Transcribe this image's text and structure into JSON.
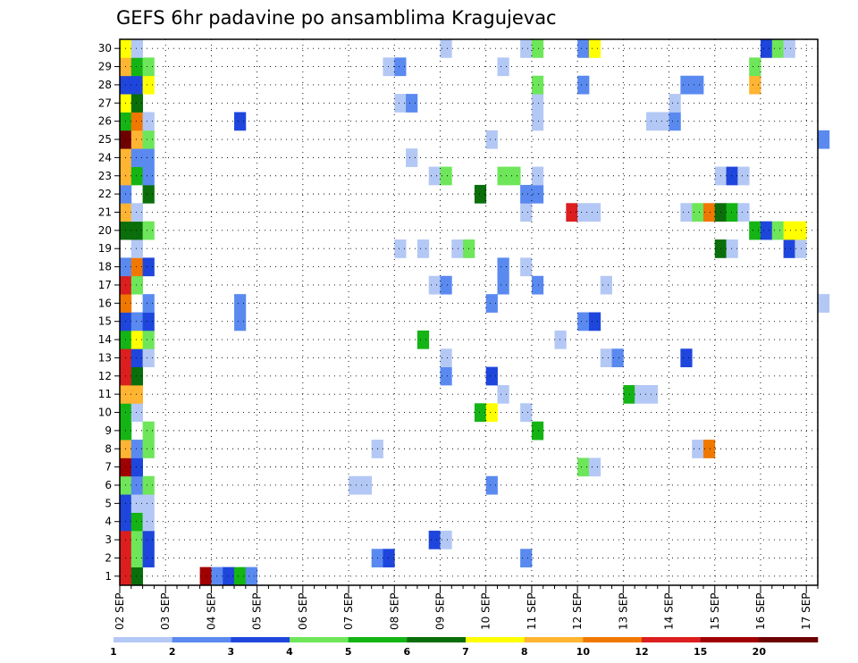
{
  "chart_data": {
    "type": "heatmap",
    "title": "GEFS 6hr padavine po ansamblima Kragujevac",
    "x_tick_labels": [
      "02 SEP",
      "03 SEP",
      "04 SEP",
      "05 SEP",
      "06 SEP",
      "07 SEP",
      "08 SEP",
      "09 SEP",
      "10 SEP",
      "11 SEP",
      "12 SEP",
      "13 SEP",
      "14 SEP",
      "15 SEP",
      "16 SEP",
      "17 SEP"
    ],
    "y_tick_labels": [
      "1",
      "2",
      "3",
      "4",
      "5",
      "6",
      "7",
      "8",
      "9",
      "10",
      "11",
      "12",
      "13",
      "14",
      "15",
      "16",
      "17",
      "18",
      "19",
      "20",
      "21",
      "22",
      "23",
      "24",
      "25",
      "26",
      "27",
      "28",
      "29",
      "30"
    ],
    "xlim": [
      0,
      61
    ],
    "ylim": [
      0,
      30
    ],
    "colorbar": {
      "labels": [
        "1",
        "2",
        "3",
        "4",
        "5",
        "6",
        "7",
        "8",
        "10",
        "12",
        "15",
        "20"
      ],
      "colors": [
        "#b4c8f5",
        "#5a8af0",
        "#1e46dc",
        "#6ee65a",
        "#14b414",
        "#0a6e0a",
        "#ffff00",
        "#ffb432",
        "#f07800",
        "#dc1e1e",
        "#a00000",
        "#6e0000"
      ]
    },
    "grid": true,
    "cells": [
      [
        0,
        0,
        10
      ],
      [
        1,
        0,
        6
      ],
      [
        7,
        0,
        11
      ],
      [
        8,
        0,
        2
      ],
      [
        9,
        0,
        3
      ],
      [
        10,
        0,
        5
      ],
      [
        11,
        0,
        2
      ],
      [
        0,
        1,
        10
      ],
      [
        1,
        1,
        4
      ],
      [
        2,
        1,
        3
      ],
      [
        22,
        1,
        2
      ],
      [
        23,
        1,
        3
      ],
      [
        35,
        1,
        2
      ],
      [
        0,
        2,
        10
      ],
      [
        1,
        2,
        4
      ],
      [
        2,
        2,
        3
      ],
      [
        27,
        2,
        3
      ],
      [
        28,
        2,
        1
      ],
      [
        0,
        3,
        3
      ],
      [
        1,
        3,
        5
      ],
      [
        2,
        3,
        1
      ],
      [
        0,
        4,
        3
      ],
      [
        1,
        4,
        1
      ],
      [
        2,
        4,
        1
      ],
      [
        0,
        5,
        4
      ],
      [
        1,
        5,
        2
      ],
      [
        2,
        5,
        4
      ],
      [
        20,
        5,
        1
      ],
      [
        21,
        5,
        1
      ],
      [
        32,
        5,
        2
      ],
      [
        0,
        6,
        11
      ],
      [
        1,
        6,
        3
      ],
      [
        40,
        6,
        4
      ],
      [
        41,
        6,
        1
      ],
      [
        0,
        7,
        8
      ],
      [
        1,
        7,
        2
      ],
      [
        2,
        7,
        4
      ],
      [
        22,
        7,
        1
      ],
      [
        50,
        7,
        1
      ],
      [
        51,
        7,
        9
      ],
      [
        0,
        8,
        5
      ],
      [
        2,
        8,
        4
      ],
      [
        36,
        8,
        5
      ],
      [
        0,
        9,
        5
      ],
      [
        1,
        9,
        1
      ],
      [
        31,
        9,
        5
      ],
      [
        32,
        9,
        7
      ],
      [
        35,
        9,
        1
      ],
      [
        0,
        10,
        8
      ],
      [
        1,
        10,
        8
      ],
      [
        33,
        10,
        1
      ],
      [
        44,
        10,
        5
      ],
      [
        45,
        10,
        1
      ],
      [
        46,
        10,
        1
      ],
      [
        0,
        11,
        10
      ],
      [
        1,
        11,
        6
      ],
      [
        28,
        11,
        2
      ],
      [
        32,
        11,
        3
      ],
      [
        0,
        12,
        10
      ],
      [
        1,
        12,
        3
      ],
      [
        2,
        12,
        1
      ],
      [
        28,
        12,
        1
      ],
      [
        42,
        12,
        1
      ],
      [
        43,
        12,
        2
      ],
      [
        49,
        12,
        3
      ],
      [
        0,
        13,
        5
      ],
      [
        1,
        13,
        7
      ],
      [
        2,
        13,
        4
      ],
      [
        26,
        13,
        5
      ],
      [
        38,
        13,
        1
      ],
      [
        0,
        14,
        3
      ],
      [
        1,
        14,
        2
      ],
      [
        2,
        14,
        3
      ],
      [
        10,
        14,
        2
      ],
      [
        40,
        14,
        2
      ],
      [
        41,
        14,
        3
      ],
      [
        0,
        15,
        9
      ],
      [
        2,
        15,
        2
      ],
      [
        10,
        15,
        2
      ],
      [
        32,
        15,
        2
      ],
      [
        61,
        15,
        1
      ],
      [
        0,
        16,
        10
      ],
      [
        1,
        16,
        4
      ],
      [
        27,
        16,
        1
      ],
      [
        28,
        16,
        2
      ],
      [
        33,
        16,
        2
      ],
      [
        36,
        16,
        2
      ],
      [
        42,
        16,
        1
      ],
      [
        0,
        17,
        2
      ],
      [
        1,
        17,
        9
      ],
      [
        2,
        17,
        3
      ],
      [
        33,
        17,
        2
      ],
      [
        35,
        17,
        1
      ],
      [
        1,
        18,
        1
      ],
      [
        24,
        18,
        1
      ],
      [
        26,
        18,
        1
      ],
      [
        29,
        18,
        1
      ],
      [
        30,
        18,
        4
      ],
      [
        52,
        18,
        6
      ],
      [
        53,
        18,
        1
      ],
      [
        58,
        18,
        3
      ],
      [
        59,
        18,
        1
      ],
      [
        0,
        19,
        6
      ],
      [
        1,
        19,
        6
      ],
      [
        2,
        19,
        4
      ],
      [
        55,
        19,
        5
      ],
      [
        56,
        19,
        3
      ],
      [
        57,
        19,
        4
      ],
      [
        58,
        19,
        7
      ],
      [
        59,
        19,
        7
      ],
      [
        0,
        20,
        8
      ],
      [
        1,
        20,
        1
      ],
      [
        35,
        20,
        1
      ],
      [
        39,
        20,
        10
      ],
      [
        40,
        20,
        1
      ],
      [
        41,
        20,
        1
      ],
      [
        49,
        20,
        1
      ],
      [
        50,
        20,
        4
      ],
      [
        51,
        20,
        9
      ],
      [
        52,
        20,
        6
      ],
      [
        53,
        20,
        5
      ],
      [
        54,
        20,
        1
      ],
      [
        0,
        21,
        2
      ],
      [
        2,
        21,
        6
      ],
      [
        31,
        21,
        6
      ],
      [
        35,
        21,
        2
      ],
      [
        36,
        21,
        2
      ],
      [
        0,
        22,
        8
      ],
      [
        1,
        22,
        5
      ],
      [
        2,
        22,
        2
      ],
      [
        27,
        22,
        1
      ],
      [
        28,
        22,
        4
      ],
      [
        33,
        22,
        4
      ],
      [
        34,
        22,
        4
      ],
      [
        36,
        22,
        1
      ],
      [
        52,
        22,
        1
      ],
      [
        53,
        22,
        3
      ],
      [
        54,
        22,
        1
      ],
      [
        0,
        23,
        8
      ],
      [
        1,
        23,
        2
      ],
      [
        2,
        23,
        2
      ],
      [
        25,
        23,
        1
      ],
      [
        0,
        24,
        12
      ],
      [
        1,
        24,
        8
      ],
      [
        2,
        24,
        4
      ],
      [
        32,
        24,
        1
      ],
      [
        61,
        24,
        2
      ],
      [
        0,
        25,
        5
      ],
      [
        1,
        25,
        9
      ],
      [
        2,
        25,
        1
      ],
      [
        10,
        25,
        3
      ],
      [
        36,
        25,
        1
      ],
      [
        46,
        25,
        1
      ],
      [
        47,
        25,
        1
      ],
      [
        48,
        25,
        2
      ],
      [
        0,
        26,
        7
      ],
      [
        1,
        26,
        6
      ],
      [
        24,
        26,
        1
      ],
      [
        25,
        26,
        2
      ],
      [
        36,
        26,
        1
      ],
      [
        48,
        26,
        1
      ],
      [
        0,
        27,
        3
      ],
      [
        1,
        27,
        3
      ],
      [
        2,
        27,
        7
      ],
      [
        36,
        27,
        4
      ],
      [
        40,
        27,
        2
      ],
      [
        49,
        27,
        2
      ],
      [
        50,
        27,
        2
      ],
      [
        55,
        27,
        8
      ],
      [
        0,
        28,
        8
      ],
      [
        1,
        28,
        5
      ],
      [
        2,
        28,
        4
      ],
      [
        23,
        28,
        1
      ],
      [
        24,
        28,
        2
      ],
      [
        33,
        28,
        1
      ],
      [
        55,
        28,
        4
      ],
      [
        0,
        29,
        7
      ],
      [
        1,
        29,
        1
      ],
      [
        28,
        29,
        1
      ],
      [
        35,
        29,
        1
      ],
      [
        36,
        29,
        4
      ],
      [
        40,
        29,
        2
      ],
      [
        41,
        29,
        7
      ],
      [
        56,
        29,
        3
      ],
      [
        57,
        29,
        4
      ],
      [
        58,
        29,
        1
      ]
    ]
  }
}
